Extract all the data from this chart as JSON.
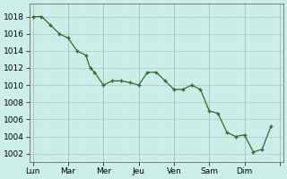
{
  "x_values": [
    0,
    0.5,
    1,
    1.5,
    2,
    2.5,
    3,
    3.25,
    3.5,
    4,
    4.5,
    5,
    5.5,
    6,
    6.5,
    7,
    7.5,
    8,
    8.5,
    9,
    9.5,
    10,
    10.5,
    11,
    11.5,
    12,
    12.5,
    13,
    13.5
  ],
  "y_values": [
    1018,
    1018,
    1017,
    1016,
    1015.5,
    1014,
    1013.5,
    1012,
    1011.5,
    1010,
    1010.5,
    1010.5,
    1010.3,
    1010,
    1011.5,
    1011.5,
    1010.5,
    1009.5,
    1009.5,
    1010,
    1009.5,
    1007,
    1006.7,
    1004.5,
    1004,
    1004.2,
    1002.2,
    1002.5,
    1005.2
  ],
  "x_ticks": [
    0,
    2,
    4,
    6,
    8,
    10,
    12,
    14
  ],
  "x_tick_labels": [
    "Lun",
    "Mar",
    "Mer",
    "Jeu",
    "Ven",
    "Sam",
    "Dim",
    ""
  ],
  "y_ticks": [
    1002,
    1004,
    1006,
    1008,
    1010,
    1012,
    1014,
    1016,
    1018
  ],
  "ylim": [
    1001.0,
    1019.5
  ],
  "xlim": [
    -0.2,
    14.2
  ],
  "line_color": "#2d6e2d",
  "marker_color": "#2d6e2d",
  "bg_color": "#cceee8",
  "grid_major_color": "#b0ccc8",
  "grid_minor_color": "#c8e8e4",
  "vline_color": "#888888",
  "font_size": 6.5
}
